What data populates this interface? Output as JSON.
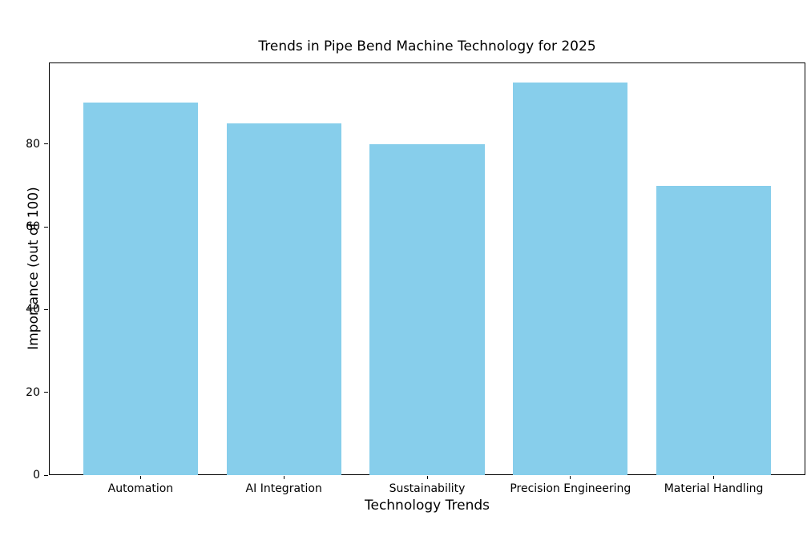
{
  "chart_data": {
    "type": "bar",
    "title": "Trends in Pipe Bend Machine Technology for 2025",
    "xlabel": "Technology Trends",
    "ylabel": "Importance (out of 100)",
    "categories": [
      "Automation",
      "AI Integration",
      "Sustainability",
      "Precision Engineering",
      "Material Handling"
    ],
    "values": [
      90,
      85,
      80,
      95,
      70
    ],
    "yticks": [
      0,
      20,
      40,
      60,
      80
    ],
    "ylim": [
      0,
      99.75
    ],
    "xlim": [
      -0.64,
      4.64
    ],
    "bar_width_fraction": 0.8,
    "bar_color": "#87CEEB",
    "axis_color": "#000000",
    "background_color": "#ffffff",
    "grid": false,
    "legend": "none"
  }
}
